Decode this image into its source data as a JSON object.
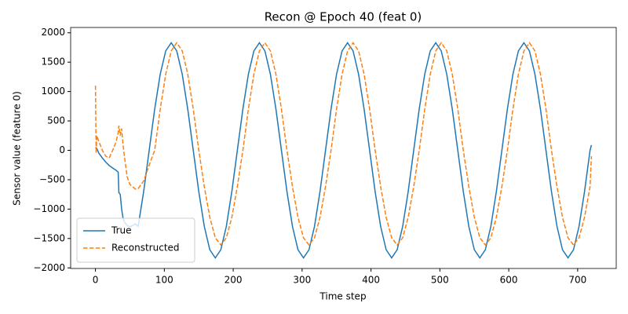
{
  "chart_data": {
    "type": "line",
    "title": "Recon @ Epoch 40 (feat 0)",
    "x_label": "Time step",
    "y_label": "Sensor value (feature 0)",
    "x": [
      0,
      1,
      2,
      5,
      10,
      15,
      20,
      25,
      30,
      33,
      34,
      36,
      38,
      40,
      42,
      46,
      50,
      54,
      58,
      62,
      70,
      78,
      86,
      94,
      102,
      110,
      118,
      126,
      134,
      142,
      150,
      158,
      166,
      174,
      182,
      190,
      198,
      206,
      214,
      222,
      230,
      238,
      246,
      254,
      262,
      270,
      278,
      286,
      294,
      302,
      310,
      318,
      326,
      334,
      342,
      350,
      358,
      366,
      374,
      382,
      390,
      398,
      406,
      414,
      422,
      430,
      438,
      446,
      454,
      462,
      470,
      478,
      486,
      494,
      502,
      510,
      518,
      526,
      534,
      542,
      550,
      558,
      566,
      574,
      582,
      590,
      598,
      606,
      614,
      622,
      630,
      638,
      646,
      654,
      662,
      670,
      678,
      686,
      694,
      702,
      710,
      718,
      720
    ],
    "series": [
      {
        "name": "True",
        "color": "#1f77b4",
        "dash": false,
        "values": [
          50,
          40,
          30,
          -50,
          -130,
          -200,
          -260,
          -300,
          -340,
          -370,
          -720,
          -750,
          -1000,
          -1150,
          -1220,
          -1280,
          -1300,
          -1280,
          -1250,
          -1294,
          -701,
          0,
          701,
          1294,
          1691,
          1830,
          1691,
          1294,
          701,
          0,
          -701,
          -1294,
          -1691,
          -1830,
          -1691,
          -1294,
          -701,
          0,
          701,
          1294,
          1691,
          1830,
          1691,
          1294,
          701,
          0,
          -701,
          -1294,
          -1691,
          -1830,
          -1691,
          -1294,
          -701,
          0,
          701,
          1294,
          1691,
          1830,
          1691,
          1294,
          701,
          0,
          -701,
          -1294,
          -1691,
          -1830,
          -1691,
          -1294,
          -701,
          0,
          701,
          1294,
          1691,
          1830,
          1691,
          1294,
          701,
          0,
          -701,
          -1294,
          -1691,
          -1830,
          -1691,
          -1294,
          -701,
          0,
          701,
          1294,
          1691,
          1830,
          1691,
          1294,
          701,
          0,
          -701,
          -1294,
          -1691,
          -1830,
          -1691,
          -1294,
          -701,
          0,
          90
        ]
      },
      {
        "name": "Reconstructed",
        "color": "#ff7f0e",
        "dash": true,
        "values": [
          1100,
          -50,
          250,
          150,
          0,
          -100,
          -130,
          0,
          150,
          300,
          420,
          250,
          370,
          100,
          -100,
          -450,
          -580,
          -620,
          -660,
          -650,
          -520,
          -250,
          0,
          701,
          1294,
          1691,
          1830,
          1691,
          1294,
          701,
          0,
          -617,
          -1139,
          -1488,
          -1610,
          -1488,
          -1139,
          -617,
          0,
          701,
          1294,
          1691,
          1830,
          1691,
          1294,
          701,
          0,
          -617,
          -1139,
          -1488,
          -1610,
          -1488,
          -1139,
          -617,
          0,
          701,
          1294,
          1691,
          1830,
          1691,
          1294,
          701,
          0,
          -617,
          -1139,
          -1488,
          -1610,
          -1488,
          -1139,
          -617,
          0,
          701,
          1294,
          1691,
          1830,
          1691,
          1294,
          701,
          0,
          -617,
          -1139,
          -1488,
          -1610,
          -1488,
          -1139,
          -617,
          0,
          701,
          1294,
          1691,
          1830,
          1691,
          1294,
          701,
          0,
          -617,
          -1139,
          -1488,
          -1610,
          -1488,
          -1139,
          -617,
          -100
        ]
      }
    ],
    "xlim": [
      -36,
      756
    ],
    "ylim": [
      -2010,
      2090
    ],
    "xticks": [
      0,
      100,
      200,
      300,
      400,
      500,
      600,
      700
    ],
    "yticks": [
      {
        "value": -2000,
        "label": "−2000"
      },
      {
        "value": -1500,
        "label": "−1500"
      },
      {
        "value": -1000,
        "label": "−1000"
      },
      {
        "value": -500,
        "label": "−500"
      },
      0,
      500,
      1000,
      1500,
      2000
    ],
    "legend": "lower left"
  }
}
